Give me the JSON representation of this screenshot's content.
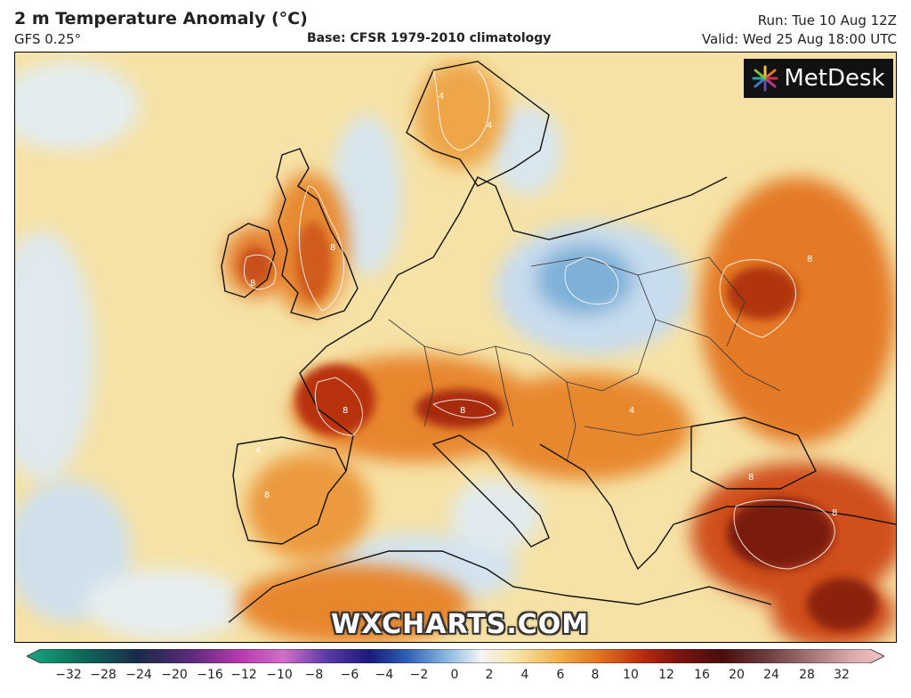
{
  "header": {
    "title": "2 m Temperature Anomaly (°C)",
    "model": "GFS 0.25°",
    "base": "Base: CFSR 1979-2010 climatology",
    "run": "Run: Tue 10 Aug 12Z",
    "valid": "Valid: Wed 25 Aug 18:00 UTC"
  },
  "logo": {
    "text": "MetDesk",
    "icon": "metdesk-starburst-icon"
  },
  "watermark": "WXCHARTS.COM",
  "colors": {
    "cold_deep": "#5a8fc4",
    "cold": "#a9cbe8",
    "neutral": "#eef2f0",
    "warm_light": "#f6e7b0",
    "warm": "#f2b64d",
    "hot": "#e07020",
    "very_hot": "#b8290f",
    "extreme": "#5a0f0f"
  },
  "legend": {
    "ticks": [
      "−32",
      "−28",
      "−24",
      "−20",
      "−16",
      "−12",
      "−10",
      "−8",
      "−6",
      "−4",
      "−2",
      "0",
      "2",
      "4",
      "6",
      "8",
      "10",
      "12",
      "16",
      "20",
      "24",
      "28",
      "32"
    ]
  },
  "contour_labels": [
    "4",
    "4",
    "8",
    "8",
    "8",
    "4",
    "8",
    "8",
    "4",
    "8",
    "8",
    "8"
  ]
}
